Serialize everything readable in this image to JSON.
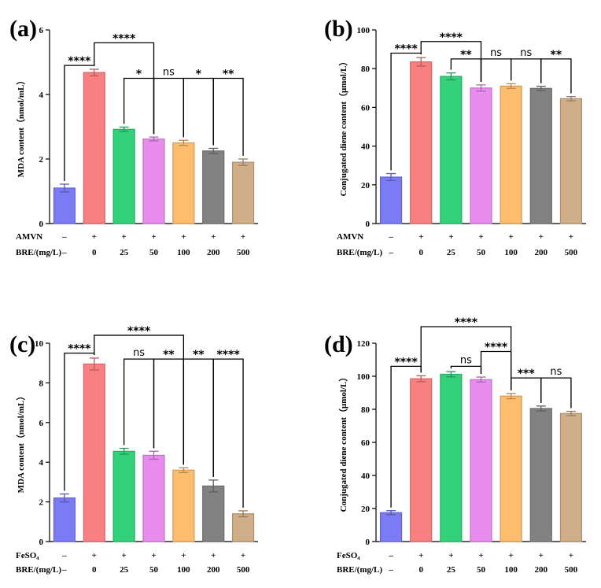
{
  "chart_data": [
    {
      "type": "bar",
      "panel": "(a)",
      "ylabel": "MDA content（nmol/mL）",
      "ylim": [
        0,
        6
      ],
      "yticks": [
        0,
        2,
        4,
        6
      ],
      "rows": [
        {
          "label": "AMVN",
          "values": [
            "–",
            "+",
            "+",
            "+",
            "+",
            "+",
            "+"
          ]
        },
        {
          "label": "BRE/(mg/L)",
          "values": [
            "–",
            "0",
            "25",
            "50",
            "100",
            "200",
            "500"
          ]
        }
      ],
      "values": [
        1.1,
        4.68,
        2.92,
        2.62,
        2.5,
        2.25,
        1.9
      ],
      "errors": [
        0.12,
        0.1,
        0.07,
        0.06,
        0.08,
        0.08,
        0.1
      ],
      "colors": [
        "#7b7bf5",
        "#f98080",
        "#33d17a",
        "#e98cf0",
        "#fdbd6e",
        "#828282",
        "#cfae88"
      ],
      "comparisons": [
        {
          "a": 0,
          "b": 1,
          "label": "****",
          "h": 4.9
        },
        {
          "a": 1,
          "b": 3,
          "label": "****",
          "h": 5.6
        },
        {
          "a": 2,
          "b": 3,
          "label": "*",
          "h": 4.5
        },
        {
          "a": 3,
          "b": 4,
          "label": "ns",
          "h": 4.5
        },
        {
          "a": 4,
          "b": 5,
          "label": "*",
          "h": 4.5
        },
        {
          "a": 5,
          "b": 6,
          "label": "**",
          "h": 4.5
        }
      ]
    },
    {
      "type": "bar",
      "panel": "(b)",
      "ylabel": "Conjugated diene content（μmol/L）",
      "ylim": [
        0,
        100
      ],
      "yticks": [
        0,
        20,
        40,
        60,
        80,
        100
      ],
      "rows": [
        {
          "label": "AMVN",
          "values": [
            "–",
            "+",
            "+",
            "+",
            "+",
            "+",
            "+"
          ]
        },
        {
          "label": "BRE/(mg/L)",
          "values": [
            "–",
            "0",
            "25",
            "50",
            "100",
            "200",
            "500"
          ]
        }
      ],
      "values": [
        24,
        83.5,
        76,
        70,
        71,
        69.8,
        64.5
      ],
      "errors": [
        1.8,
        2.2,
        1.8,
        1.6,
        1.2,
        1.1,
        1.1
      ],
      "colors": [
        "#7b7bf5",
        "#f98080",
        "#33d17a",
        "#e98cf0",
        "#fdbd6e",
        "#828282",
        "#cfae88"
      ],
      "comparisons": [
        {
          "a": 0,
          "b": 1,
          "label": "****",
          "h": 88
        },
        {
          "a": 1,
          "b": 3,
          "label": "****",
          "h": 94
        },
        {
          "a": 2,
          "b": 3,
          "label": "**",
          "h": 85
        },
        {
          "a": 3,
          "b": 4,
          "label": "ns",
          "h": 85
        },
        {
          "a": 4,
          "b": 5,
          "label": "ns",
          "h": 85
        },
        {
          "a": 5,
          "b": 6,
          "label": "**",
          "h": 85
        }
      ]
    },
    {
      "type": "bar",
      "panel": "(c)",
      "ylabel": "MDA content（nmol/mL）",
      "ylim": [
        0,
        10
      ],
      "yticks": [
        0,
        2,
        4,
        6,
        8,
        10
      ],
      "rows": [
        {
          "label": "FeSO₄",
          "values": [
            "–",
            "+",
            "+",
            "+",
            "+",
            "+",
            "+"
          ]
        },
        {
          "label": "BRE/(mg/L)",
          "values": [
            "–",
            "0",
            "25",
            "50",
            "100",
            "200",
            "500"
          ]
        }
      ],
      "values": [
        2.2,
        8.95,
        4.55,
        4.35,
        3.6,
        2.8,
        1.4
      ],
      "errors": [
        0.2,
        0.3,
        0.15,
        0.2,
        0.12,
        0.3,
        0.15
      ],
      "colors": [
        "#7b7bf5",
        "#f98080",
        "#33d17a",
        "#e98cf0",
        "#fdbd6e",
        "#828282",
        "#cfae88"
      ],
      "comparisons": [
        {
          "a": 0,
          "b": 1,
          "label": "****",
          "h": 9.5
        },
        {
          "a": 1,
          "b": 4,
          "label": "****",
          "h": 10.4
        },
        {
          "a": 2,
          "b": 3,
          "label": "ns",
          "h": 9.2
        },
        {
          "a": 3,
          "b": 4,
          "label": "**",
          "h": 9.2
        },
        {
          "a": 4,
          "b": 5,
          "label": "**",
          "h": 9.2
        },
        {
          "a": 5,
          "b": 6,
          "label": "****",
          "h": 9.2
        }
      ]
    },
    {
      "type": "bar",
      "panel": "(d)",
      "ylabel": "Conjugated diene content（μmol/L）",
      "ylim": [
        0,
        120
      ],
      "yticks": [
        0,
        20,
        40,
        60,
        80,
        100,
        120
      ],
      "rows": [
        {
          "label": "FeSO₄",
          "values": [
            "–",
            "+",
            "+",
            "+",
            "+",
            "+",
            "+"
          ]
        },
        {
          "label": "BRE/(mg/L)",
          "values": [
            "–",
            "0",
            "25",
            "50",
            "100",
            "200",
            "500"
          ]
        }
      ],
      "values": [
        17.5,
        98.5,
        101.2,
        98,
        88,
        80.5,
        77.5
      ],
      "errors": [
        1.2,
        1.8,
        1.6,
        1.5,
        1.6,
        1.5,
        1.3
      ],
      "colors": [
        "#7b7bf5",
        "#f98080",
        "#33d17a",
        "#e98cf0",
        "#fdbd6e",
        "#828282",
        "#cfae88"
      ],
      "comparisons": [
        {
          "a": 0,
          "b": 1,
          "label": "****",
          "h": 106
        },
        {
          "a": 1,
          "b": 4,
          "label": "****",
          "h": 130
        },
        {
          "a": 2,
          "b": 3,
          "label": "ns",
          "h": 106
        },
        {
          "a": 3,
          "b": 4,
          "label": "****",
          "h": 115
        },
        {
          "a": 4,
          "b": 5,
          "label": "***",
          "h": 99
        },
        {
          "a": 5,
          "b": 6,
          "label": "ns",
          "h": 99
        }
      ]
    }
  ]
}
